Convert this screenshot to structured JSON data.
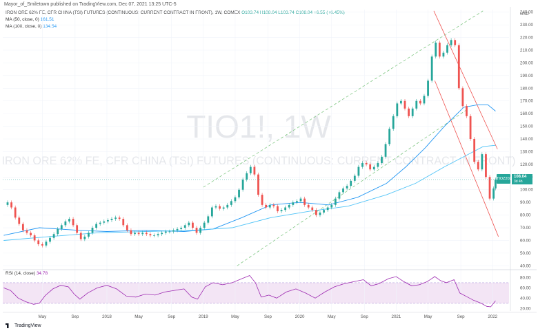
{
  "header": {
    "publisher": "Mayor_of_Smiletown published on TradingView.com, Dec 07, 2021 13:25 UTC-5",
    "symbol_line": "IRON ORE 62% FE, CFR CHINA (TSI) FUTURES (CONTINUOUS: CURRENT CONTRACT IN FRONT), 1W, COMEX",
    "ohlc": {
      "o": "O103.74",
      "h": "H108.04",
      "l": "L103.74",
      "c": "C108.04",
      "chg": "+6.55 (+6.45%)"
    },
    "ma50_label": "MA (50, close, 0)",
    "ma50_value": "161.51",
    "ma100_label": "MA (100, close, 0)",
    "ma100_value": "134.54",
    "rsi_label": "RSI (14, close)",
    "rsi_value": "34.78"
  },
  "watermark": {
    "ticker": "TIO1!, 1W",
    "description": "IRON ORE 62% FE, CFR CHINA (TSI) FUTURES (CONTINUOUS: CURRENT CONTRACT IN FRONT)"
  },
  "price_tags": {
    "badge": "TIOZ2021",
    "price": "108.04",
    "time": "3d 4h"
  },
  "footer": {
    "brand": "TradingView"
  },
  "colors": {
    "up": "#26a69a",
    "down": "#ef5350",
    "ma50": "#2196f3",
    "ma100": "#4fc3f7",
    "rsi": "#9c27b0",
    "rsi_band": "#f3e5f5",
    "channel_red": "#ef5350",
    "channel_green": "#81c784"
  },
  "chart_data": {
    "type": "candlestick",
    "price_axis": {
      "unit": "USD",
      "ticks": [
        40,
        50,
        60,
        70,
        80,
        90,
        100,
        110,
        120,
        130,
        140,
        150,
        160,
        170,
        180,
        190,
        200,
        210,
        220,
        230,
        240
      ],
      "range": [
        38,
        242
      ]
    },
    "rsi_axis": {
      "ticks": [
        20,
        40,
        60,
        80
      ],
      "range": [
        15,
        90
      ],
      "band": [
        30,
        70
      ]
    },
    "time_axis": {
      "labels": [
        "May",
        "Sep",
        "2018",
        "May",
        "Sep",
        "2019",
        "May",
        "Sep",
        "2020",
        "May",
        "Sep",
        "2021",
        "May",
        "Sep",
        "2022"
      ],
      "positions": [
        2017.33,
        2017.67,
        2018.0,
        2018.33,
        2018.67,
        2019.0,
        2019.33,
        2019.67,
        2020.0,
        2020.33,
        2020.67,
        2021.0,
        2021.33,
        2021.67,
        2022.0
      ],
      "range": [
        2016.92,
        2022.17
      ]
    },
    "price_series": [
      {
        "t": 2016.93,
        "v": 88
      },
      {
        "t": 2016.97,
        "v": 90
      },
      {
        "t": 2017.01,
        "v": 86
      },
      {
        "t": 2017.05,
        "v": 78
      },
      {
        "t": 2017.09,
        "v": 73
      },
      {
        "t": 2017.13,
        "v": 68
      },
      {
        "t": 2017.17,
        "v": 66
      },
      {
        "t": 2017.21,
        "v": 64
      },
      {
        "t": 2017.25,
        "v": 60
      },
      {
        "t": 2017.29,
        "v": 57
      },
      {
        "t": 2017.33,
        "v": 56
      },
      {
        "t": 2017.37,
        "v": 59
      },
      {
        "t": 2017.41,
        "v": 62
      },
      {
        "t": 2017.45,
        "v": 65
      },
      {
        "t": 2017.49,
        "v": 69
      },
      {
        "t": 2017.53,
        "v": 72
      },
      {
        "t": 2017.57,
        "v": 75
      },
      {
        "t": 2017.61,
        "v": 77
      },
      {
        "t": 2017.65,
        "v": 72
      },
      {
        "t": 2017.69,
        "v": 66
      },
      {
        "t": 2017.73,
        "v": 61
      },
      {
        "t": 2017.77,
        "v": 63
      },
      {
        "t": 2017.81,
        "v": 66
      },
      {
        "t": 2017.85,
        "v": 70
      },
      {
        "t": 2017.89,
        "v": 73
      },
      {
        "t": 2017.93,
        "v": 74
      },
      {
        "t": 2017.97,
        "v": 75
      },
      {
        "t": 2018.01,
        "v": 76
      },
      {
        "t": 2018.05,
        "v": 77
      },
      {
        "t": 2018.09,
        "v": 78
      },
      {
        "t": 2018.13,
        "v": 77
      },
      {
        "t": 2018.17,
        "v": 72
      },
      {
        "t": 2018.21,
        "v": 68
      },
      {
        "t": 2018.25,
        "v": 65
      },
      {
        "t": 2018.29,
        "v": 66
      },
      {
        "t": 2018.33,
        "v": 65
      },
      {
        "t": 2018.37,
        "v": 66
      },
      {
        "t": 2018.41,
        "v": 65
      },
      {
        "t": 2018.45,
        "v": 64
      },
      {
        "t": 2018.49,
        "v": 64
      },
      {
        "t": 2018.53,
        "v": 65
      },
      {
        "t": 2018.57,
        "v": 66
      },
      {
        "t": 2018.61,
        "v": 67
      },
      {
        "t": 2018.65,
        "v": 67
      },
      {
        "t": 2018.69,
        "v": 68
      },
      {
        "t": 2018.73,
        "v": 69
      },
      {
        "t": 2018.77,
        "v": 70
      },
      {
        "t": 2018.81,
        "v": 72
      },
      {
        "t": 2018.85,
        "v": 74
      },
      {
        "t": 2018.89,
        "v": 70
      },
      {
        "t": 2018.93,
        "v": 66
      },
      {
        "t": 2018.97,
        "v": 70
      },
      {
        "t": 2019.01,
        "v": 74
      },
      {
        "t": 2019.05,
        "v": 79
      },
      {
        "t": 2019.09,
        "v": 86
      },
      {
        "t": 2019.13,
        "v": 87
      },
      {
        "t": 2019.17,
        "v": 85
      },
      {
        "t": 2019.21,
        "v": 86
      },
      {
        "t": 2019.25,
        "v": 88
      },
      {
        "t": 2019.29,
        "v": 91
      },
      {
        "t": 2019.33,
        "v": 94
      },
      {
        "t": 2019.37,
        "v": 100
      },
      {
        "t": 2019.41,
        "v": 108
      },
      {
        "t": 2019.45,
        "v": 113
      },
      {
        "t": 2019.49,
        "v": 118
      },
      {
        "t": 2019.53,
        "v": 112
      },
      {
        "t": 2019.57,
        "v": 96
      },
      {
        "t": 2019.61,
        "v": 88
      },
      {
        "t": 2019.65,
        "v": 86
      },
      {
        "t": 2019.69,
        "v": 88
      },
      {
        "t": 2019.73,
        "v": 87
      },
      {
        "t": 2019.77,
        "v": 83
      },
      {
        "t": 2019.81,
        "v": 84
      },
      {
        "t": 2019.85,
        "v": 86
      },
      {
        "t": 2019.89,
        "v": 88
      },
      {
        "t": 2019.93,
        "v": 90
      },
      {
        "t": 2019.97,
        "v": 91
      },
      {
        "t": 2020.01,
        "v": 93
      },
      {
        "t": 2020.05,
        "v": 88
      },
      {
        "t": 2020.09,
        "v": 86
      },
      {
        "t": 2020.13,
        "v": 84
      },
      {
        "t": 2020.17,
        "v": 80
      },
      {
        "t": 2020.21,
        "v": 82
      },
      {
        "t": 2020.25,
        "v": 84
      },
      {
        "t": 2020.29,
        "v": 86
      },
      {
        "t": 2020.33,
        "v": 88
      },
      {
        "t": 2020.37,
        "v": 93
      },
      {
        "t": 2020.41,
        "v": 98
      },
      {
        "t": 2020.45,
        "v": 101
      },
      {
        "t": 2020.49,
        "v": 103
      },
      {
        "t": 2020.53,
        "v": 107
      },
      {
        "t": 2020.57,
        "v": 111
      },
      {
        "t": 2020.61,
        "v": 118
      },
      {
        "t": 2020.65,
        "v": 121
      },
      {
        "t": 2020.69,
        "v": 120
      },
      {
        "t": 2020.73,
        "v": 116
      },
      {
        "t": 2020.77,
        "v": 118
      },
      {
        "t": 2020.81,
        "v": 121
      },
      {
        "t": 2020.85,
        "v": 126
      },
      {
        "t": 2020.89,
        "v": 136
      },
      {
        "t": 2020.93,
        "v": 148
      },
      {
        "t": 2020.97,
        "v": 158
      },
      {
        "t": 2021.01,
        "v": 168
      },
      {
        "t": 2021.05,
        "v": 170
      },
      {
        "t": 2021.09,
        "v": 164
      },
      {
        "t": 2021.13,
        "v": 158
      },
      {
        "t": 2021.17,
        "v": 164
      },
      {
        "t": 2021.21,
        "v": 170
      },
      {
        "t": 2021.25,
        "v": 168
      },
      {
        "t": 2021.29,
        "v": 174
      },
      {
        "t": 2021.33,
        "v": 186
      },
      {
        "t": 2021.37,
        "v": 205
      },
      {
        "t": 2021.41,
        "v": 216
      },
      {
        "t": 2021.45,
        "v": 205
      },
      {
        "t": 2021.49,
        "v": 208
      },
      {
        "t": 2021.53,
        "v": 214
      },
      {
        "t": 2021.57,
        "v": 218
      },
      {
        "t": 2021.61,
        "v": 214
      },
      {
        "t": 2021.65,
        "v": 180
      },
      {
        "t": 2021.69,
        "v": 166
      },
      {
        "t": 2021.73,
        "v": 158
      },
      {
        "t": 2021.77,
        "v": 140
      },
      {
        "t": 2021.81,
        "v": 122
      },
      {
        "t": 2021.85,
        "v": 116
      },
      {
        "t": 2021.89,
        "v": 128
      },
      {
        "t": 2021.93,
        "v": 110
      },
      {
        "t": 2021.97,
        "v": 93
      },
      {
        "t": 2022.01,
        "v": 101
      },
      {
        "t": 2022.03,
        "v": 108
      }
    ],
    "ma50_series": [
      {
        "t": 2016.93,
        "v": 64
      },
      {
        "t": 2017.3,
        "v": 70
      },
      {
        "t": 2017.7,
        "v": 68
      },
      {
        "t": 2018.0,
        "v": 67
      },
      {
        "t": 2018.4,
        "v": 68
      },
      {
        "t": 2018.8,
        "v": 67
      },
      {
        "t": 2019.1,
        "v": 69
      },
      {
        "t": 2019.4,
        "v": 78
      },
      {
        "t": 2019.7,
        "v": 88
      },
      {
        "t": 2020.0,
        "v": 90
      },
      {
        "t": 2020.3,
        "v": 88
      },
      {
        "t": 2020.6,
        "v": 94
      },
      {
        "t": 2020.9,
        "v": 105
      },
      {
        "t": 2021.1,
        "v": 118
      },
      {
        "t": 2021.3,
        "v": 133
      },
      {
        "t": 2021.5,
        "v": 150
      },
      {
        "t": 2021.7,
        "v": 165
      },
      {
        "t": 2021.85,
        "v": 167
      },
      {
        "t": 2021.95,
        "v": 167
      },
      {
        "t": 2022.03,
        "v": 162
      }
    ],
    "ma100_series": [
      {
        "t": 2016.93,
        "v": 60
      },
      {
        "t": 2017.4,
        "v": 63
      },
      {
        "t": 2017.9,
        "v": 66
      },
      {
        "t": 2018.4,
        "v": 67
      },
      {
        "t": 2018.9,
        "v": 68
      },
      {
        "t": 2019.3,
        "v": 70
      },
      {
        "t": 2019.7,
        "v": 78
      },
      {
        "t": 2020.1,
        "v": 83
      },
      {
        "t": 2020.5,
        "v": 87
      },
      {
        "t": 2020.9,
        "v": 96
      },
      {
        "t": 2021.2,
        "v": 105
      },
      {
        "t": 2021.5,
        "v": 118
      },
      {
        "t": 2021.75,
        "v": 128
      },
      {
        "t": 2021.9,
        "v": 134
      },
      {
        "t": 2022.03,
        "v": 135
      }
    ],
    "rsi_series": [
      {
        "t": 2016.93,
        "v": 60
      },
      {
        "t": 2017.0,
        "v": 55
      },
      {
        "t": 2017.08,
        "v": 40
      },
      {
        "t": 2017.16,
        "v": 33
      },
      {
        "t": 2017.24,
        "v": 28
      },
      {
        "t": 2017.3,
        "v": 30
      },
      {
        "t": 2017.36,
        "v": 45
      },
      {
        "t": 2017.44,
        "v": 58
      },
      {
        "t": 2017.52,
        "v": 65
      },
      {
        "t": 2017.6,
        "v": 62
      },
      {
        "t": 2017.66,
        "v": 48
      },
      {
        "t": 2017.72,
        "v": 38
      },
      {
        "t": 2017.8,
        "v": 50
      },
      {
        "t": 2017.9,
        "v": 60
      },
      {
        "t": 2018.0,
        "v": 65
      },
      {
        "t": 2018.1,
        "v": 58
      },
      {
        "t": 2018.2,
        "v": 44
      },
      {
        "t": 2018.3,
        "v": 42
      },
      {
        "t": 2018.4,
        "v": 48
      },
      {
        "t": 2018.5,
        "v": 46
      },
      {
        "t": 2018.6,
        "v": 52
      },
      {
        "t": 2018.7,
        "v": 55
      },
      {
        "t": 2018.8,
        "v": 58
      },
      {
        "t": 2018.88,
        "v": 42
      },
      {
        "t": 2018.94,
        "v": 38
      },
      {
        "t": 2019.02,
        "v": 62
      },
      {
        "t": 2019.1,
        "v": 70
      },
      {
        "t": 2019.2,
        "v": 66
      },
      {
        "t": 2019.3,
        "v": 70
      },
      {
        "t": 2019.4,
        "v": 78
      },
      {
        "t": 2019.48,
        "v": 84
      },
      {
        "t": 2019.54,
        "v": 70
      },
      {
        "t": 2019.6,
        "v": 42
      },
      {
        "t": 2019.68,
        "v": 46
      },
      {
        "t": 2019.76,
        "v": 40
      },
      {
        "t": 2019.86,
        "v": 52
      },
      {
        "t": 2019.96,
        "v": 58
      },
      {
        "t": 2020.06,
        "v": 50
      },
      {
        "t": 2020.16,
        "v": 40
      },
      {
        "t": 2020.26,
        "v": 52
      },
      {
        "t": 2020.36,
        "v": 62
      },
      {
        "t": 2020.46,
        "v": 68
      },
      {
        "t": 2020.56,
        "v": 72
      },
      {
        "t": 2020.66,
        "v": 76
      },
      {
        "t": 2020.74,
        "v": 64
      },
      {
        "t": 2020.82,
        "v": 68
      },
      {
        "t": 2020.92,
        "v": 78
      },
      {
        "t": 2021.0,
        "v": 82
      },
      {
        "t": 2021.08,
        "v": 72
      },
      {
        "t": 2021.16,
        "v": 64
      },
      {
        "t": 2021.24,
        "v": 66
      },
      {
        "t": 2021.32,
        "v": 72
      },
      {
        "t": 2021.4,
        "v": 82
      },
      {
        "t": 2021.46,
        "v": 74
      },
      {
        "t": 2021.52,
        "v": 70
      },
      {
        "t": 2021.6,
        "v": 76
      },
      {
        "t": 2021.66,
        "v": 50
      },
      {
        "t": 2021.72,
        "v": 44
      },
      {
        "t": 2021.8,
        "v": 36
      },
      {
        "t": 2021.88,
        "v": 30
      },
      {
        "t": 2021.94,
        "v": 24
      },
      {
        "t": 2021.98,
        "v": 23
      },
      {
        "t": 2022.03,
        "v": 34.78
      }
    ],
    "channels": [
      {
        "name": "red-upper",
        "color": "#ef5350",
        "from": {
          "t": 2021.39,
          "v": 241
        },
        "to": {
          "t": 2022.05,
          "v": 132
        }
      },
      {
        "name": "red-lower",
        "color": "#ef5350",
        "from": {
          "t": 2021.4,
          "v": 186
        },
        "to": {
          "t": 2022.06,
          "v": 63
        }
      },
      {
        "name": "green-upper",
        "color": "#81c784",
        "from": {
          "t": 2019.0,
          "v": 102
        },
        "to": {
          "t": 2021.9,
          "v": 241
        }
      },
      {
        "name": "green-lower",
        "color": "#81c784",
        "from": {
          "t": 2019.35,
          "v": 40
        },
        "to": {
          "t": 2021.75,
          "v": 164
        }
      }
    ]
  }
}
